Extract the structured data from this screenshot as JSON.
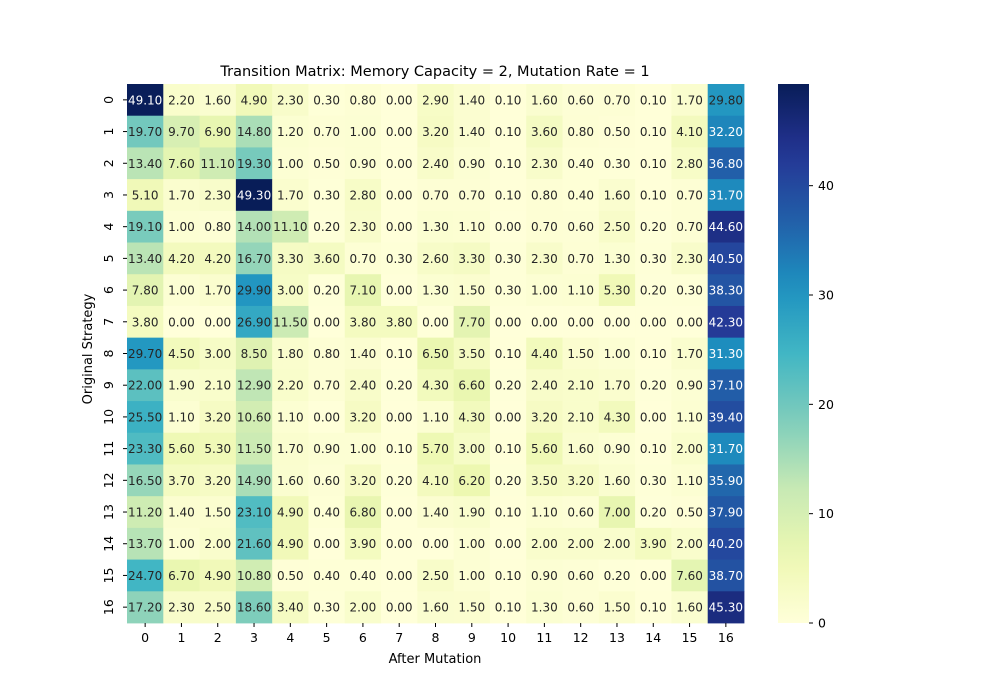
{
  "chart_data": {
    "type": "heatmap",
    "title": "Transition Matrix: Memory Capacity = 2, Mutation Rate = 1",
    "xlabel": "After Mutation",
    "ylabel": "Original Strategy",
    "x_categories": [
      "0",
      "1",
      "2",
      "3",
      "4",
      "5",
      "6",
      "7",
      "8",
      "9",
      "10",
      "11",
      "12",
      "13",
      "14",
      "15",
      "16"
    ],
    "y_categories": [
      "0",
      "1",
      "2",
      "3",
      "4",
      "5",
      "6",
      "7",
      "8",
      "9",
      "10",
      "11",
      "12",
      "13",
      "14",
      "15",
      "16"
    ],
    "values": [
      [
        49.1,
        2.2,
        1.6,
        4.9,
        2.3,
        0.3,
        0.8,
        0.0,
        2.9,
        1.4,
        0.1,
        1.6,
        0.6,
        0.7,
        0.1,
        1.7,
        29.8
      ],
      [
        19.7,
        9.7,
        6.9,
        14.8,
        1.2,
        0.7,
        1.0,
        0.0,
        3.2,
        1.4,
        0.1,
        3.6,
        0.8,
        0.5,
        0.1,
        4.1,
        32.2
      ],
      [
        13.4,
        7.6,
        11.1,
        19.3,
        1.0,
        0.5,
        0.9,
        0.0,
        2.4,
        0.9,
        0.1,
        2.3,
        0.4,
        0.3,
        0.1,
        2.8,
        36.8
      ],
      [
        5.1,
        1.7,
        2.3,
        49.3,
        1.7,
        0.3,
        2.8,
        0.0,
        0.7,
        0.7,
        0.1,
        0.8,
        0.4,
        1.6,
        0.1,
        0.7,
        31.7
      ],
      [
        19.1,
        1.0,
        0.8,
        14.0,
        11.1,
        0.2,
        2.3,
        0.0,
        1.3,
        1.1,
        0.0,
        0.7,
        0.6,
        2.5,
        0.2,
        0.7,
        44.6
      ],
      [
        13.4,
        4.2,
        4.2,
        16.7,
        3.3,
        3.6,
        0.7,
        0.3,
        2.6,
        3.3,
        0.3,
        2.3,
        0.7,
        1.3,
        0.3,
        2.3,
        40.5
      ],
      [
        7.8,
        1.0,
        1.7,
        29.9,
        3.0,
        0.2,
        7.1,
        0.0,
        1.3,
        1.5,
        0.3,
        1.0,
        1.1,
        5.3,
        0.2,
        0.3,
        38.3
      ],
      [
        3.8,
        0.0,
        0.0,
        26.9,
        11.5,
        0.0,
        3.8,
        3.8,
        0.0,
        7.7,
        0.0,
        0.0,
        0.0,
        0.0,
        0.0,
        0.0,
        42.3
      ],
      [
        29.7,
        4.5,
        3.0,
        8.5,
        1.8,
        0.8,
        1.4,
        0.1,
        6.5,
        3.5,
        0.1,
        4.4,
        1.5,
        1.0,
        0.1,
        1.7,
        31.3
      ],
      [
        22.0,
        1.9,
        2.1,
        12.9,
        2.2,
        0.7,
        2.4,
        0.2,
        4.3,
        6.6,
        0.2,
        2.4,
        2.1,
        1.7,
        0.2,
        0.9,
        37.1
      ],
      [
        25.5,
        1.1,
        3.2,
        10.6,
        1.1,
        0.0,
        3.2,
        0.0,
        1.1,
        4.3,
        0.0,
        3.2,
        2.1,
        4.3,
        0.0,
        1.1,
        39.4
      ],
      [
        23.3,
        5.6,
        5.3,
        11.5,
        1.7,
        0.9,
        1.0,
        0.1,
        5.7,
        3.0,
        0.1,
        5.6,
        1.6,
        0.9,
        0.1,
        2.0,
        31.7
      ],
      [
        16.5,
        3.7,
        3.2,
        14.9,
        1.6,
        0.6,
        3.2,
        0.2,
        4.1,
        6.2,
        0.2,
        3.5,
        3.2,
        1.6,
        0.3,
        1.1,
        35.9
      ],
      [
        11.2,
        1.4,
        1.5,
        23.1,
        4.9,
        0.4,
        6.8,
        0.0,
        1.4,
        1.9,
        0.1,
        1.1,
        0.6,
        7.0,
        0.2,
        0.5,
        37.9
      ],
      [
        13.7,
        1.0,
        2.0,
        21.6,
        4.9,
        0.0,
        3.9,
        0.0,
        0.0,
        1.0,
        0.0,
        2.0,
        2.0,
        2.0,
        3.9,
        2.0,
        40.2
      ],
      [
        24.7,
        6.7,
        4.9,
        10.8,
        0.5,
        0.4,
        0.4,
        0.0,
        2.5,
        1.0,
        0.1,
        0.9,
        0.6,
        0.2,
        0.0,
        7.6,
        38.7
      ],
      [
        17.2,
        2.3,
        2.5,
        18.6,
        3.4,
        0.3,
        2.0,
        0.0,
        1.6,
        1.5,
        0.1,
        1.3,
        0.6,
        1.5,
        0.1,
        1.6,
        45.3
      ]
    ],
    "colorscale": "YlGnBu",
    "color_range": [
      0,
      49.3
    ],
    "colorbar_ticks": [
      "0",
      "10",
      "20",
      "30",
      "40"
    ],
    "colorbar_tick_values": [
      0,
      10,
      20,
      30,
      40
    ],
    "value_format": "0.00",
    "grid": false
  }
}
